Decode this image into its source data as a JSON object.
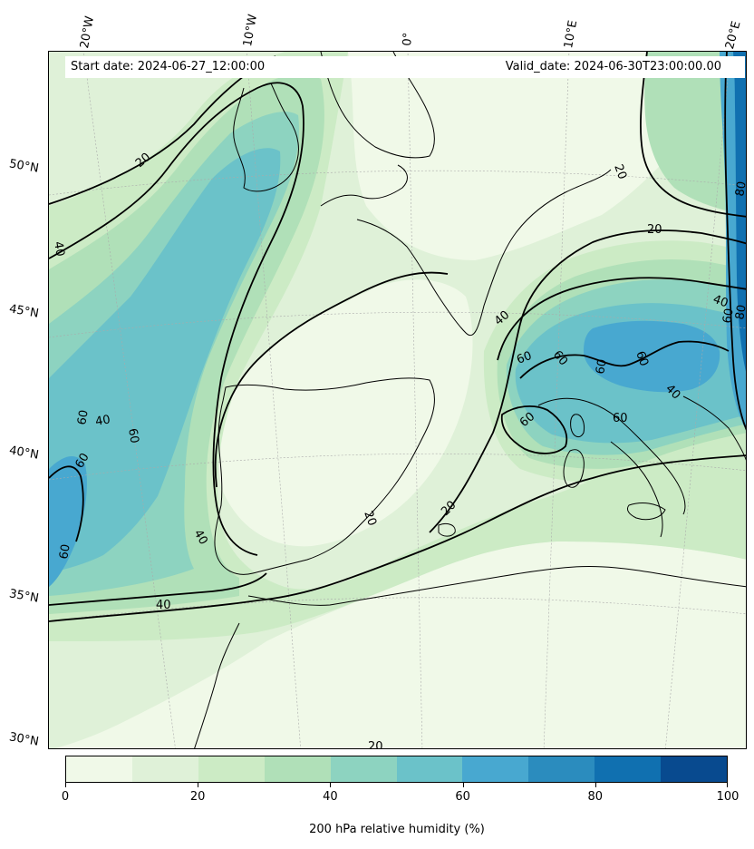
{
  "header": {
    "start_date": "Start date: 2024-06-27_12:00:00",
    "valid_date": "Valid_date: 2024-06-30T23:00:00.00"
  },
  "longitude_labels": [
    "20°W",
    "10°W",
    "0°",
    "10°E",
    "20°E"
  ],
  "latitude_labels": [
    "50°N",
    "45°N",
    "40°N",
    "35°N",
    "30°N"
  ],
  "contour_labels": [
    "20",
    "40",
    "60",
    "80"
  ],
  "colorbar": {
    "title": "200 hPa relative humidity (%)",
    "ticks": [
      "0",
      "20",
      "40",
      "60",
      "80",
      "100"
    ],
    "colors": [
      "#f0f9e8",
      "#dff1d8",
      "#ccebc5",
      "#b0e0b8",
      "#8dd3c0",
      "#6bc2c9",
      "#48a8d0",
      "#2b8cbe",
      "#1070b0",
      "#084a8f"
    ]
  },
  "colors": {
    "coast": "#000000",
    "contour": "#000000",
    "grid": "#aaaaaa"
  }
}
